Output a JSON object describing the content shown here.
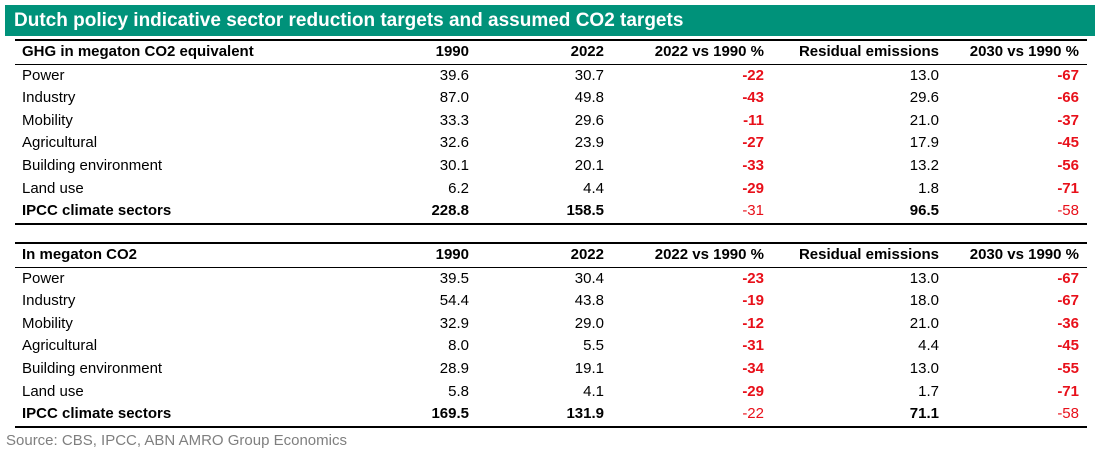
{
  "title": "Dutch policy indicative sector reduction targets and assumed CO2 targets",
  "colors": {
    "header_bg": "#00927a",
    "negative": "#e8101a",
    "source_text": "#7f7f7f"
  },
  "tables": [
    {
      "header": [
        "GHG in megaton CO2 equivalent",
        "1990",
        "2022",
        "2022 vs 1990 %",
        "Residual emissions",
        "2030 vs 1990 %"
      ],
      "rows": [
        [
          "Power",
          "39.6",
          "30.7",
          "-22",
          "13.0",
          "-67"
        ],
        [
          "Industry",
          "87.0",
          "49.8",
          "-43",
          "29.6",
          "-66"
        ],
        [
          "Mobility",
          "33.3",
          "29.6",
          "-11",
          "21.0",
          "-37"
        ],
        [
          "Agricultural",
          "32.6",
          "23.9",
          "-27",
          "17.9",
          "-45"
        ],
        [
          "Building environment",
          "30.1",
          "20.1",
          "-33",
          "13.2",
          "-56"
        ],
        [
          "Land use",
          "6.2",
          "4.4",
          "-29",
          "1.8",
          "-71"
        ]
      ],
      "total": [
        "IPCC climate sectors",
        "228.8",
        "158.5",
        "-31",
        "96.5",
        "-58"
      ]
    },
    {
      "header": [
        "In megaton CO2",
        "1990",
        "2022",
        "2022 vs 1990 %",
        "Residual emissions",
        "2030 vs 1990 %"
      ],
      "rows": [
        [
          "Power",
          "39.5",
          "30.4",
          "-23",
          "13.0",
          "-67"
        ],
        [
          "Industry",
          "54.4",
          "43.8",
          "-19",
          "18.0",
          "-67"
        ],
        [
          "Mobility",
          "32.9",
          "29.0",
          "-12",
          "21.0",
          "-36"
        ],
        [
          "Agricultural",
          "8.0",
          "5.5",
          "-31",
          "4.4",
          "-45"
        ],
        [
          "Building environment",
          "28.9",
          "19.1",
          "-34",
          "13.0",
          "-55"
        ],
        [
          "Land use",
          "5.8",
          "4.1",
          "-29",
          "1.7",
          "-71"
        ]
      ],
      "total": [
        "IPCC climate sectors",
        "169.5",
        "131.9",
        "-22",
        "71.1",
        "-58"
      ]
    }
  ],
  "source": "Source: CBS, IPCC, ABN AMRO Group Economics"
}
